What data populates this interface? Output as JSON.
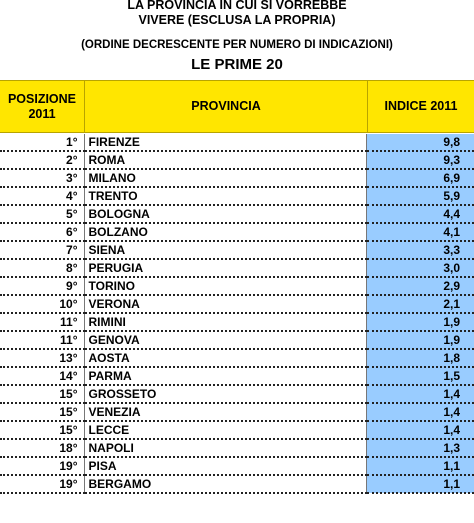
{
  "header": {
    "line1": "LA PROVINCIA IN CUI SI VORREBBE",
    "line2": "VIVERE (ESCLUSA LA PROPRIA)",
    "subtitle": "(ORDINE DECRESCENTE PER NUMERO DI INDICAZIONI)",
    "title": "LE PRIME 20"
  },
  "columns": {
    "position": "POSIZIONE 2011",
    "province": "PROVINCIA",
    "index": "INDICE 2011"
  },
  "rows": [
    {
      "pos": "1°",
      "prov": "FIRENZE",
      "idx": "9,8"
    },
    {
      "pos": "2°",
      "prov": "ROMA",
      "idx": "9,3"
    },
    {
      "pos": "3°",
      "prov": "MILANO",
      "idx": "6,9"
    },
    {
      "pos": "4°",
      "prov": "TRENTO",
      "idx": "5,9"
    },
    {
      "pos": "5°",
      "prov": "BOLOGNA",
      "idx": "4,4"
    },
    {
      "pos": "6°",
      "prov": "BOLZANO",
      "idx": "4,1"
    },
    {
      "pos": "7°",
      "prov": "SIENA",
      "idx": "3,3"
    },
    {
      "pos": "8°",
      "prov": "PERUGIA",
      "idx": "3,0"
    },
    {
      "pos": "9°",
      "prov": "TORINO",
      "idx": "2,9"
    },
    {
      "pos": "10°",
      "prov": "VERONA",
      "idx": "2,1"
    },
    {
      "pos": "11°",
      "prov": "RIMINI",
      "idx": "1,9"
    },
    {
      "pos": "11°",
      "prov": "GENOVA",
      "idx": "1,9"
    },
    {
      "pos": "13°",
      "prov": "AOSTA",
      "idx": "1,8"
    },
    {
      "pos": "14°",
      "prov": "PARMA",
      "idx": "1,5"
    },
    {
      "pos": "15°",
      "prov": "GROSSETO",
      "idx": "1,4"
    },
    {
      "pos": "15°",
      "prov": "VENEZIA",
      "idx": "1,4"
    },
    {
      "pos": "15°",
      "prov": "LECCE",
      "idx": "1,4"
    },
    {
      "pos": "18°",
      "prov": "NAPOLI",
      "idx": "1,3"
    },
    {
      "pos": "19°",
      "prov": "PISA",
      "idx": "1,1"
    },
    {
      "pos": "19°",
      "prov": "BERGAMO",
      "idx": "1,1"
    }
  ],
  "colors": {
    "header_fill": "#ffe600",
    "index_fill": "#99ccff"
  }
}
